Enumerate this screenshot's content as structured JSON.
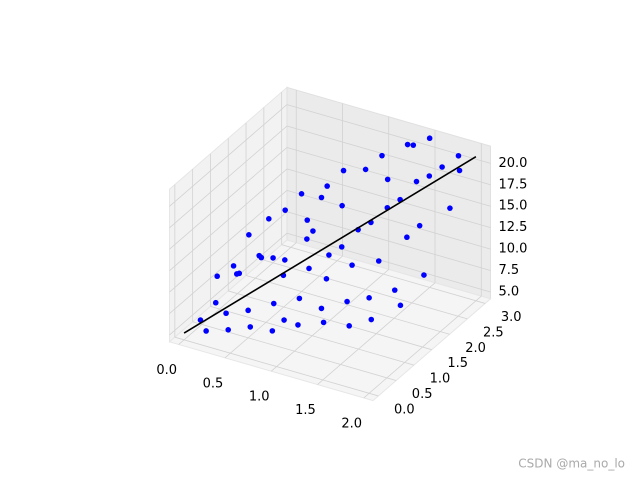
{
  "chart_data": {
    "type": "scatter3d",
    "xlim": [
      -0.1,
      2.1
    ],
    "ylim": [
      -0.15,
      3.15
    ],
    "zlim": [
      4.2,
      22.0
    ],
    "xticks": [
      {
        "value": 0,
        "label": "0.0"
      },
      0.5,
      {
        "value": 1,
        "label": "1.0"
      },
      1.5,
      {
        "value": 2,
        "label": "2.0"
      }
    ],
    "yticks": [
      {
        "value": 0,
        "label": "0.0"
      },
      0.5,
      {
        "value": 1,
        "label": "1.0"
      },
      1.5,
      {
        "value": 2,
        "label": "2.0"
      },
      2.5,
      {
        "value": 3,
        "label": "3.0"
      }
    ],
    "zticks": [
      {
        "value": 5,
        "label": "5.0"
      },
      7.5,
      {
        "value": 10,
        "label": "10.0"
      },
      12.5,
      {
        "value": 15,
        "label": "15.0"
      },
      17.5,
      {
        "value": 20,
        "label": "20.0"
      }
    ],
    "grid": true,
    "series": [
      {
        "type": "scatter",
        "color": "#0000ff",
        "x": [
          0.1,
          0.2,
          0.15,
          0.3,
          0.05,
          0.4,
          0.25,
          0.5,
          0.35,
          0.6,
          0.45,
          0.2,
          0.7,
          0.55,
          0.3,
          0.8,
          0.65,
          0.4,
          0.9,
          0.75,
          0.5,
          1.0,
          0.85,
          0.6,
          1.1,
          0.95,
          0.7,
          1.2,
          1.05,
          0.8,
          1.3,
          1.15,
          0.9,
          1.4,
          1.25,
          1.0,
          1.5,
          1.35,
          1.1,
          1.6,
          1.45,
          1.2,
          1.7,
          1.55,
          1.3,
          1.8,
          1.65,
          1.4,
          1.9,
          1.75,
          1.5,
          1.85,
          1.95,
          1.6,
          1.0,
          0.5,
          0.3,
          1.2,
          0.7,
          1.45,
          0.15,
          0.85,
          1.7,
          1.9,
          0.6
        ],
        "y": [
          0.2,
          0.1,
          0.5,
          0.4,
          0.8,
          0.2,
          0.9,
          0.5,
          1.2,
          0.3,
          1.0,
          1.3,
          0.7,
          1.4,
          1.6,
          0.4,
          1.1,
          1.8,
          0.9,
          1.5,
          2.0,
          0.6,
          1.3,
          1.9,
          1.0,
          1.6,
          2.2,
          0.8,
          1.7,
          2.4,
          1.2,
          1.9,
          2.1,
          1.0,
          2.0,
          2.5,
          1.3,
          2.2,
          2.7,
          1.1,
          2.3,
          2.6,
          1.5,
          2.5,
          2.9,
          1.4,
          2.6,
          2.8,
          1.8,
          2.7,
          3.0,
          2.9,
          2.4,
          2.1,
          1.4,
          1.2,
          0.7,
          1.6,
          1.8,
          1.7,
          1.0,
          0.6,
          2.2,
          2.8,
          2.3
        ],
        "z": [
          6.1,
          5.5,
          7.2,
          6.8,
          8.9,
          5.9,
          9.5,
          7.4,
          10.8,
          6.5,
          11.6,
          12.4,
          8.1,
          10.2,
          13.5,
          6.3,
          9.8,
          14.1,
          8.6,
          12.9,
          15.6,
          6.9,
          10.5,
          13.2,
          7.7,
          11.3,
          16.4,
          7.1,
          12.2,
          17.8,
          8.4,
          13.8,
          15.1,
          6.6,
          14.6,
          18.2,
          9.1,
          15.9,
          19.4,
          7.6,
          16.8,
          17.3,
          9.9,
          18.5,
          20.6,
          8.8,
          19.1,
          21.2,
          11.2,
          20.1,
          21.6,
          21.0,
          17.0,
          13.6,
          9.4,
          11.0,
          10.3,
          10.9,
          12.6,
          11.8,
          9.7,
          7.0,
          14.9,
          19.8,
          14.4
        ]
      },
      {
        "type": "line",
        "color": "#000000",
        "x": [
          0,
          2
        ],
        "y": [
          0,
          3
        ],
        "z": [
          5,
          21
        ]
      }
    ],
    "watermark": "CSDN @ma_no_lo"
  }
}
